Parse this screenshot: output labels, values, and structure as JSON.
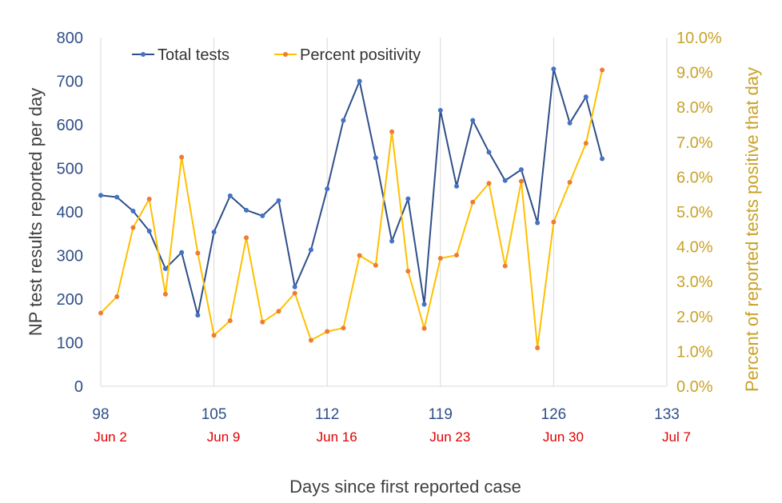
{
  "chart_data": {
    "type": "line",
    "xlabel": "Days since first reported case",
    "ylabel_left": "NP test results reported per day",
    "ylabel_right": "Percent of reported tests positive that day",
    "xlim": [
      98,
      133
    ],
    "ylim_left": [
      0,
      800
    ],
    "ylim_right": [
      0,
      10
    ],
    "x_ticks": [
      "98",
      "105",
      "112",
      "119",
      "126",
      "133"
    ],
    "x_tick_values": [
      98,
      105,
      112,
      119,
      126,
      133
    ],
    "date_labels": [
      "Jun 2",
      "Jun 9",
      "Jun 16",
      "Jun 23",
      "Jun 30",
      "Jul 7"
    ],
    "left_ticks": [
      "0",
      "100",
      "200",
      "300",
      "400",
      "500",
      "600",
      "700",
      "800"
    ],
    "left_tick_values": [
      0,
      100,
      200,
      300,
      400,
      500,
      600,
      700,
      800
    ],
    "right_ticks": [
      "0.0%",
      "1.0%",
      "2.0%",
      "3.0%",
      "4.0%",
      "5.0%",
      "6.0%",
      "7.0%",
      "8.0%",
      "9.0%",
      "10.0%"
    ],
    "right_tick_values": [
      0,
      1,
      2,
      3,
      4,
      5,
      6,
      7,
      8,
      9,
      10
    ],
    "grid": "vertical",
    "legend_position": "top-left",
    "x": [
      98,
      99,
      100,
      101,
      102,
      103,
      104,
      105,
      106,
      107,
      108,
      109,
      110,
      111,
      112,
      113,
      114,
      115,
      116,
      117,
      118,
      119,
      120,
      121,
      122,
      123,
      124,
      125,
      126,
      127,
      128,
      129
    ],
    "series": [
      {
        "name": "Total tests",
        "axis": "left",
        "color": "#2f4f88",
        "values": [
          438,
          434,
          402,
          356,
          270,
          307,
          163,
          354,
          437,
          404,
          391,
          426,
          228,
          313,
          453,
          610,
          700,
          524,
          333,
          430,
          188,
          633,
          459,
          610,
          537,
          472,
          497,
          375,
          728,
          604,
          664,
          522
        ]
      },
      {
        "name": "Percent positivity",
        "axis": "right",
        "color": "#ffc000",
        "marker_color": "#ed7d31",
        "values": [
          2.1,
          2.57,
          4.55,
          5.37,
          2.64,
          6.57,
          3.82,
          1.46,
          1.88,
          4.26,
          1.84,
          2.15,
          2.67,
          1.32,
          1.57,
          1.67,
          3.75,
          3.47,
          7.3,
          3.3,
          1.66,
          3.67,
          3.76,
          5.28,
          5.82,
          3.45,
          5.88,
          1.1,
          4.71,
          5.85,
          6.97,
          9.07
        ]
      }
    ]
  }
}
